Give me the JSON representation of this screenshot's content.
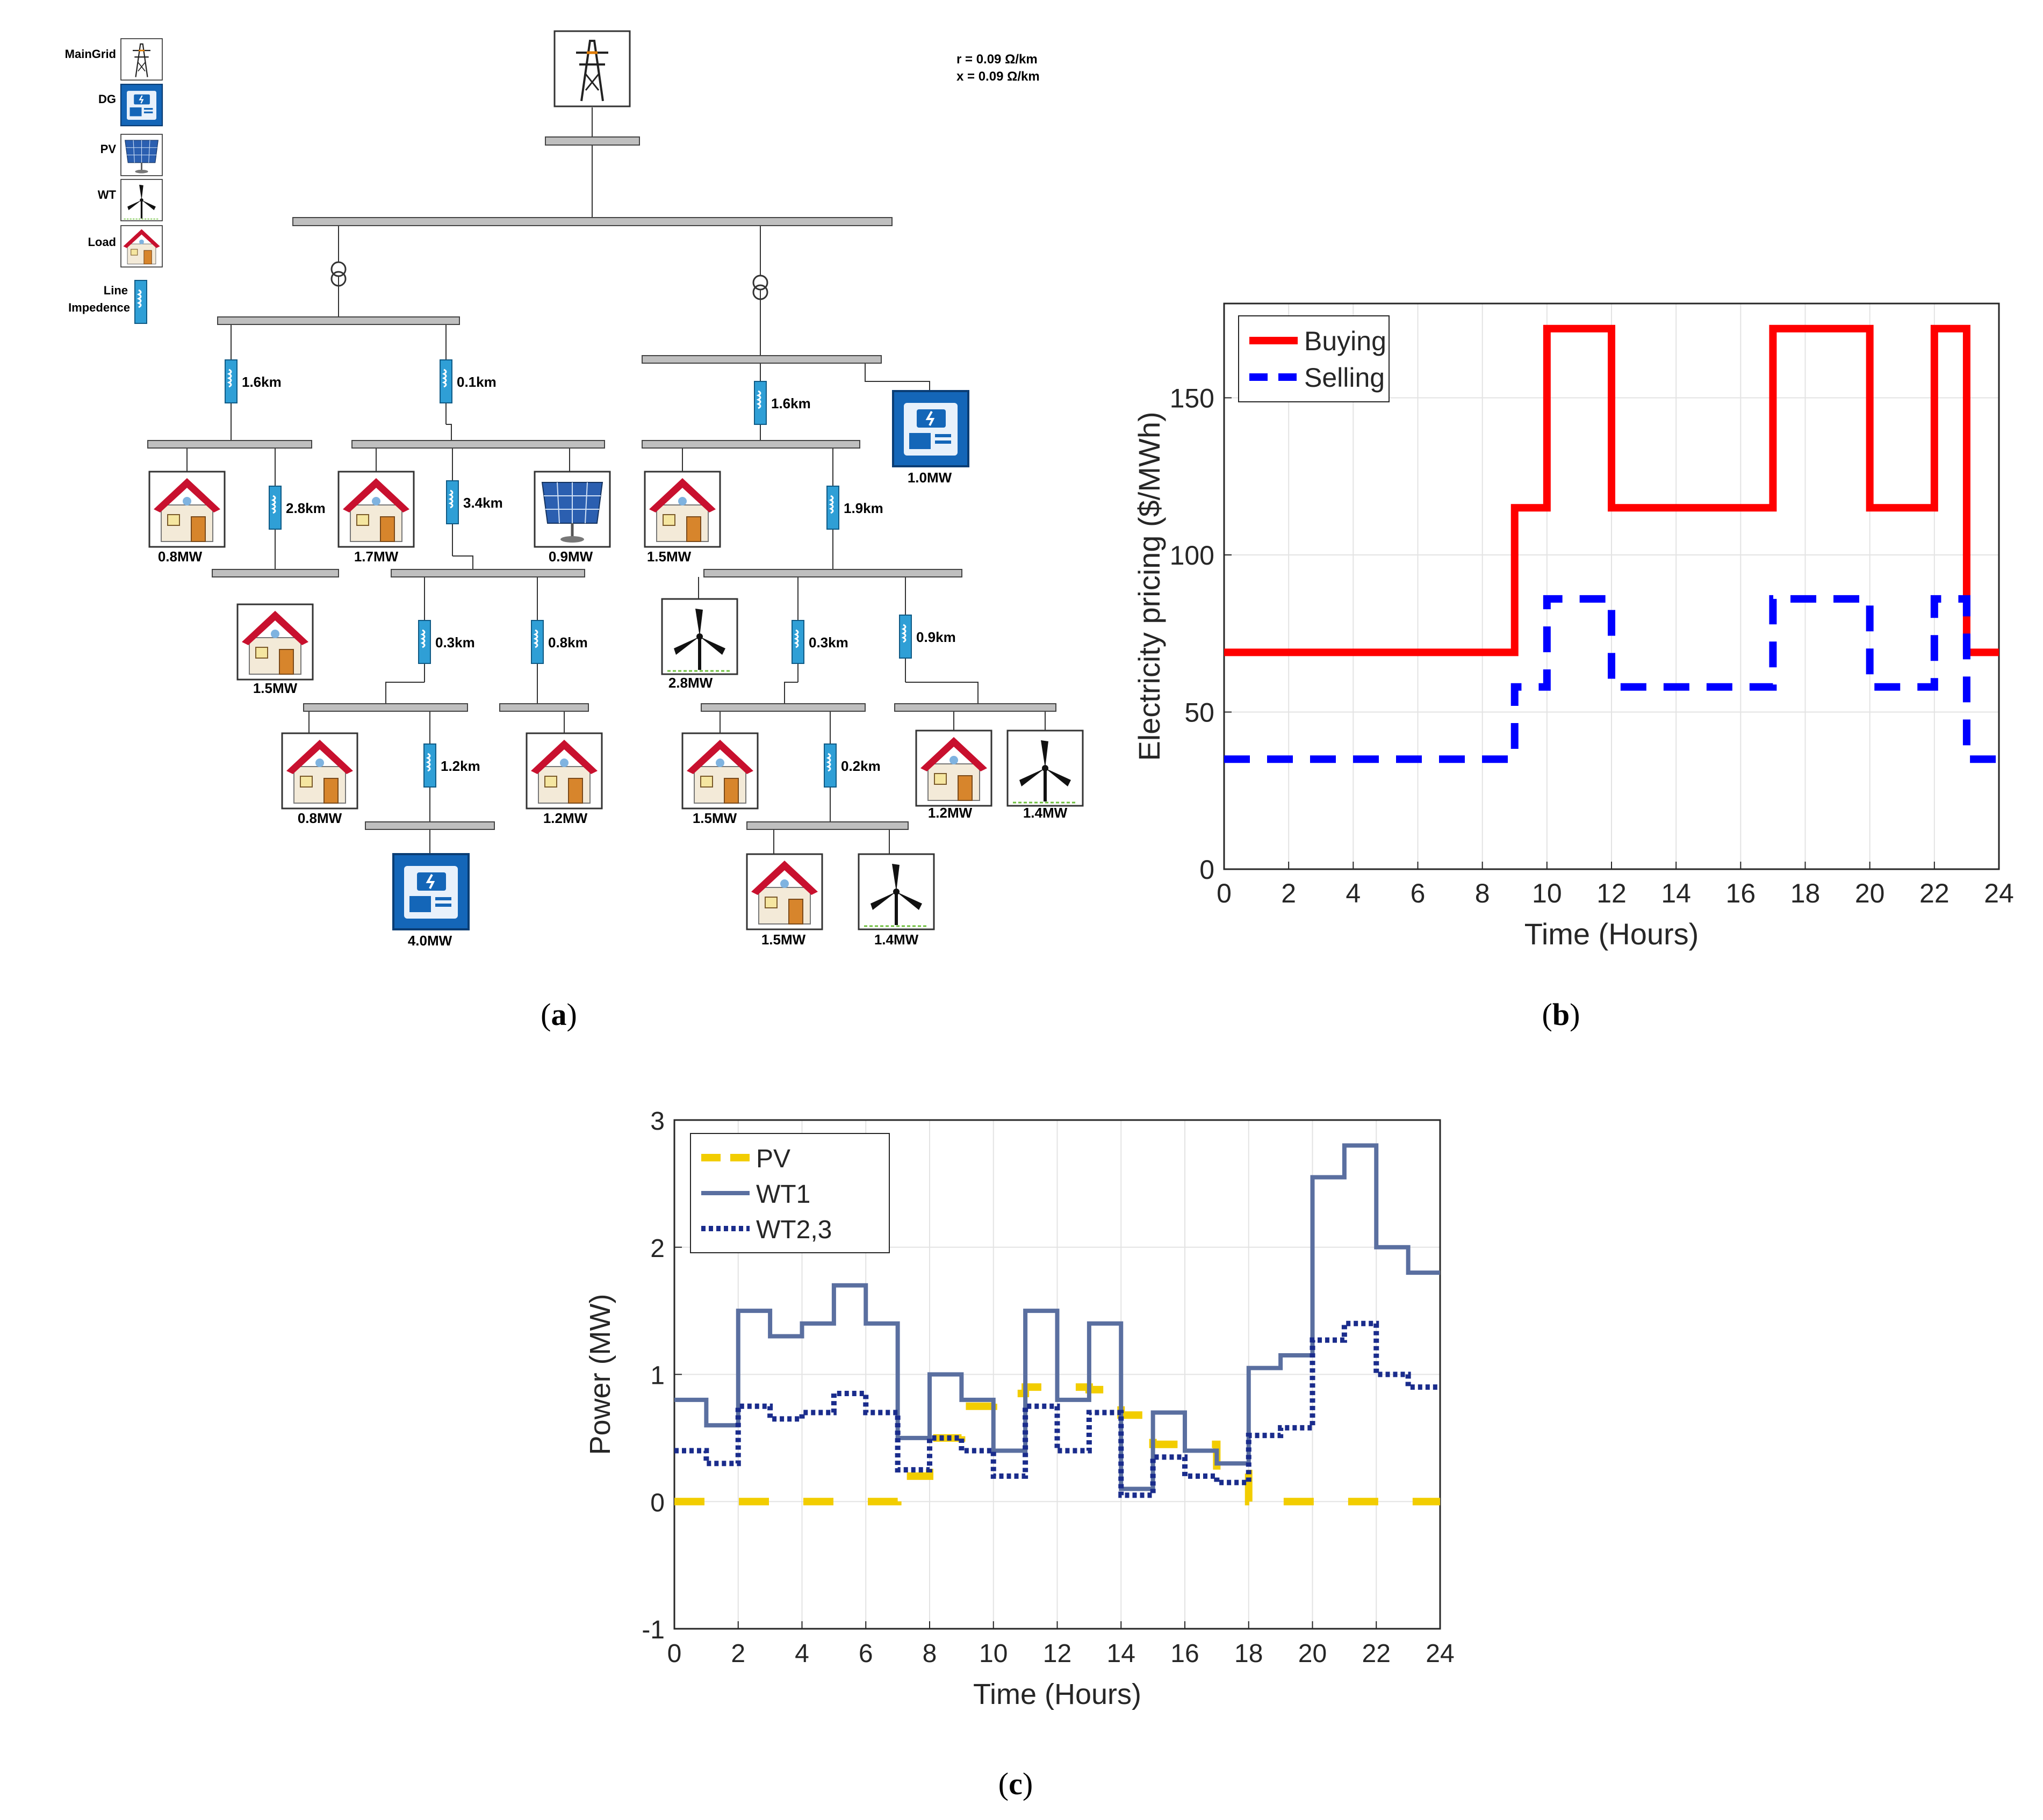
{
  "colors": {
    "buying": "#ff0000",
    "selling": "#0000ff",
    "pv": "#f2cd00",
    "wt1": "#5a6fa0",
    "wt23": "#1a2c8c",
    "bus_fill": "#bfbfbf",
    "impedance": "#2f9fd6",
    "dg_blue": "#1466b8",
    "roof_red": "#c8102e"
  },
  "diagram": {
    "legend": {
      "maingrid": "MainGrid",
      "dg": "DG",
      "pv": "PV",
      "wt": "WT",
      "load": "Load",
      "line1": "Line",
      "line2": "Impedence"
    },
    "params": {
      "r": "r = 0.09 Ω/km",
      "x": "x = 0.09 Ω/km"
    },
    "lines": {
      "l1": "1.6km",
      "l2": "0.1km",
      "l3": "2.8km",
      "l4": "3.4km",
      "l5": "0.3km",
      "l6": "0.8km",
      "l7": "1.2km",
      "l8": "1.6km",
      "l9": "1.9km",
      "l10": "0.3km",
      "l11": "0.9km",
      "l12": "0.2km"
    },
    "ratings": {
      "load1": "0.8MW",
      "load2": "1.7MW",
      "pv1": "0.9MW",
      "load3": "1.5MW",
      "load4": "0.8MW",
      "load5": "1.2MW",
      "dg1": "4.0MW",
      "dg2": "1.0MW",
      "load6": "1.5MW",
      "wt1": "2.8MW",
      "load7": "1.5MW",
      "load8": "1.2MW",
      "wt2": "1.4MW",
      "load9": "1.5MW",
      "wt3": "1.4MW"
    }
  },
  "chart_data": [
    {
      "type": "line",
      "step": true,
      "title": "",
      "xlabel": "Time (Hours)",
      "ylabel": "Electricity pricing ($/MWh)",
      "xlim": [
        0,
        24
      ],
      "ylim": [
        0,
        180
      ],
      "xticks": [
        0,
        2,
        4,
        6,
        8,
        10,
        12,
        14,
        16,
        18,
        20,
        22,
        24
      ],
      "yticks": [
        0,
        50,
        100,
        150
      ],
      "legend": "top-left",
      "series": [
        {
          "name": "Buying",
          "values": [
            69,
            69,
            69,
            69,
            69,
            69,
            69,
            69,
            69,
            115,
            172,
            172,
            115,
            115,
            115,
            115,
            115,
            172,
            172,
            172,
            115,
            115,
            172,
            69
          ]
        },
        {
          "name": "Selling",
          "values": [
            35,
            35,
            35,
            35,
            35,
            35,
            35,
            35,
            35,
            58,
            86,
            86,
            58,
            58,
            58,
            58,
            58,
            86,
            86,
            86,
            58,
            58,
            86,
            35
          ]
        }
      ]
    },
    {
      "type": "line",
      "step": true,
      "title": "",
      "xlabel": "Time (Hours)",
      "ylabel": "Power (MW)",
      "xlim": [
        0,
        24
      ],
      "ylim": [
        -1,
        3
      ],
      "xticks": [
        0,
        2,
        4,
        6,
        8,
        10,
        12,
        14,
        16,
        18,
        20,
        22,
        24
      ],
      "yticks": [
        -1,
        0,
        1,
        2,
        3
      ],
      "legend": "top-left",
      "series": [
        {
          "name": "PV",
          "values": [
            0,
            0,
            0,
            0,
            0,
            0,
            0,
            0.2,
            0.5,
            0.75,
            0.85,
            0.9,
            0.9,
            0.88,
            0.68,
            0.45,
            0.45,
            0.22,
            0,
            0,
            0,
            0,
            0,
            0
          ]
        },
        {
          "name": "WT1",
          "values": [
            0.8,
            0.6,
            1.5,
            1.3,
            1.4,
            1.7,
            1.4,
            0.5,
            1.0,
            0.8,
            0.4,
            1.5,
            0.8,
            1.4,
            0.1,
            0.7,
            0.4,
            0.3,
            1.05,
            1.15,
            2.55,
            2.8,
            2.0,
            1.8
          ]
        },
        {
          "name": "WT2,3",
          "values": [
            0.4,
            0.3,
            0.75,
            0.65,
            0.7,
            0.85,
            0.7,
            0.25,
            0.5,
            0.4,
            0.2,
            0.75,
            0.4,
            0.7,
            0.05,
            0.35,
            0.2,
            0.15,
            0.52,
            0.58,
            1.27,
            1.4,
            1.0,
            0.9
          ]
        }
      ]
    }
  ],
  "captions": {
    "a": "a",
    "b": "b",
    "c": "c"
  }
}
